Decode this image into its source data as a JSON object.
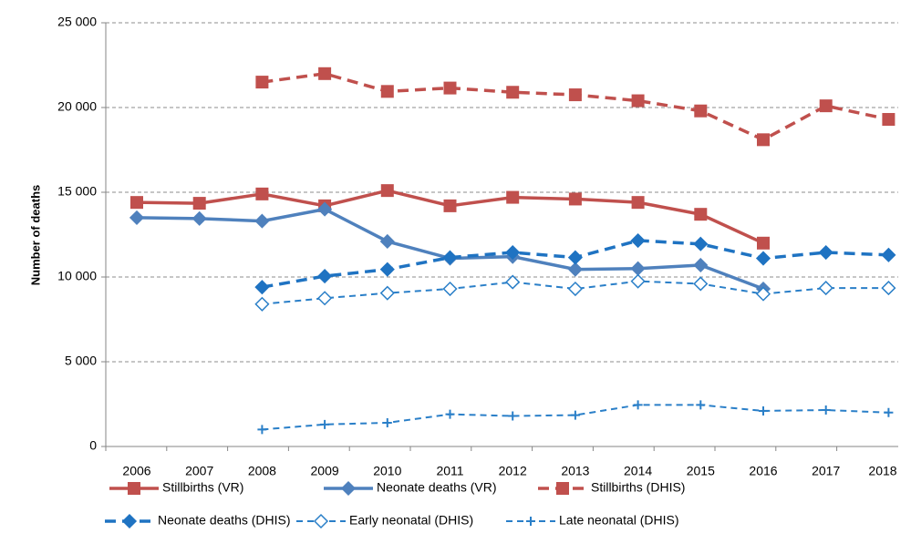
{
  "chart_data": {
    "type": "line",
    "y_label": "Number of deaths",
    "categories": [
      "2006",
      "2007",
      "2008",
      "2009",
      "2010",
      "2011",
      "2012",
      "2013",
      "2014",
      "2015",
      "2016",
      "2017",
      "2018"
    ],
    "ylim": [
      0,
      25000
    ],
    "yticks": [
      {
        "value": 0,
        "label": "0"
      },
      {
        "value": 5000,
        "label": "5 000"
      },
      {
        "value": 10000,
        "label": "10 000"
      },
      {
        "value": 15000,
        "label": "15 000"
      },
      {
        "value": 20000,
        "label": "20 000"
      },
      {
        "value": 25000,
        "label": "25 000"
      }
    ],
    "grid": true,
    "legend": "bottom",
    "series": [
      {
        "name": "Stillbirths (VR)",
        "color": "#c0504d",
        "style": "solid",
        "marker": "square",
        "values": [
          14400,
          14350,
          14900,
          14200,
          15100,
          14200,
          14700,
          14600,
          14400,
          13700,
          12000,
          null,
          null
        ]
      },
      {
        "name": "Neonate deaths (VR)",
        "color": "#4f81bd",
        "style": "solid",
        "marker": "diamond",
        "values": [
          13500,
          13450,
          13300,
          14000,
          12100,
          11100,
          11200,
          10450,
          10500,
          10700,
          9300,
          null,
          null
        ]
      },
      {
        "name": "Stillbirths (DHIS)",
        "color": "#c0504d",
        "style": "dashed",
        "marker": "square",
        "values": [
          null,
          null,
          21500,
          22000,
          20950,
          21150,
          20900,
          20750,
          20400,
          19800,
          18100,
          20100,
          19300
        ]
      },
      {
        "name": "Neonate deaths (DHIS)",
        "color": "#1f73c2",
        "style": "dashed",
        "marker": "diamond",
        "values": [
          null,
          null,
          9400,
          10050,
          10450,
          11150,
          11450,
          11150,
          12150,
          11950,
          11100,
          11450,
          11300
        ]
      },
      {
        "name": "Early neonatal (DHIS)",
        "color": "#2a7fc8",
        "style": "dashed-thin",
        "marker": "diamond-open",
        "values": [
          null,
          null,
          8400,
          8750,
          9050,
          9300,
          9700,
          9300,
          9750,
          9600,
          9000,
          9350,
          9350
        ]
      },
      {
        "name": "Late neonatal (DHIS)",
        "color": "#2a7fc8",
        "style": "dashed-thin",
        "marker": "plus",
        "values": [
          null,
          null,
          1000,
          1300,
          1400,
          1900,
          1800,
          1850,
          2450,
          2450,
          2100,
          2150,
          2000
        ]
      }
    ]
  }
}
